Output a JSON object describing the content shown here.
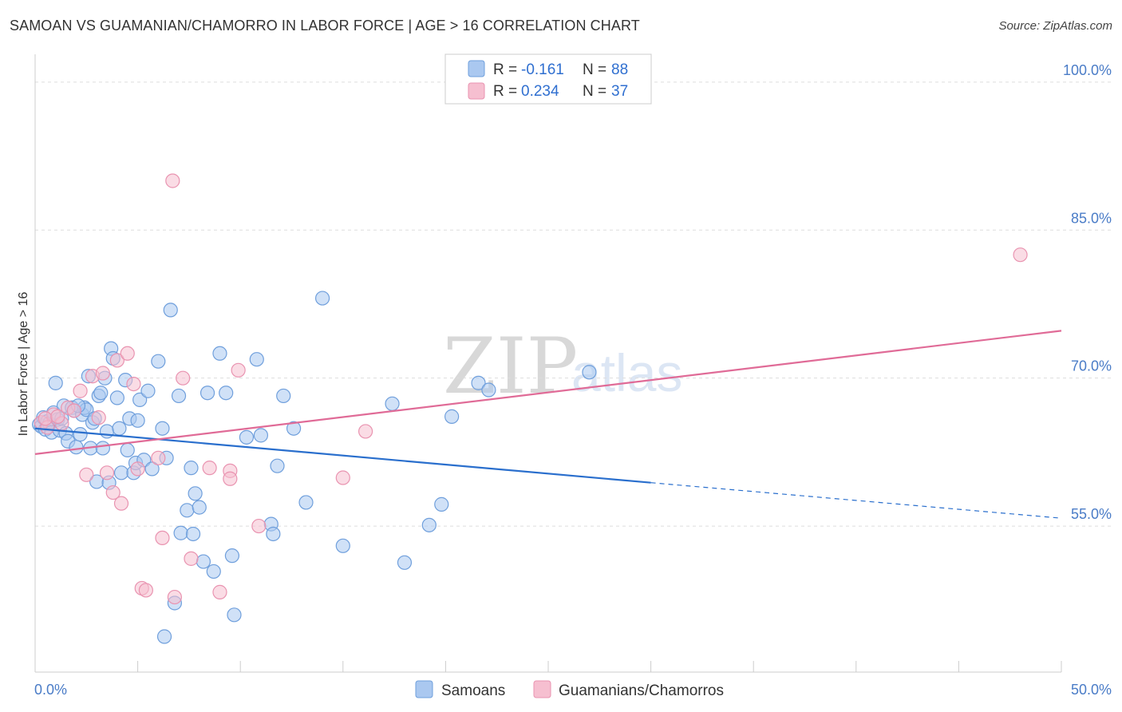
{
  "title": "SAMOAN VS GUAMANIAN/CHAMORRO IN LABOR FORCE | AGE > 16 CORRELATION CHART",
  "source": "Source: ZipAtlas.com",
  "watermark": {
    "zip": "ZIP",
    "atlas": "atlas"
  },
  "legend": {
    "rows": [
      {
        "r_label": "R =",
        "r_value": "-0.161",
        "n_label": "N =",
        "n_value": "88"
      },
      {
        "r_label": "R =",
        "r_value": "0.234",
        "n_label": "N =",
        "n_value": "37"
      }
    ]
  },
  "bottom_legend": {
    "samoans": "Samoans",
    "guamanians": "Guamanians/Chamorros"
  },
  "colors": {
    "blue_fill": "#aac8f0",
    "blue_stroke": "#6f9fdc",
    "blue_line": "#2a6fcd",
    "pink_fill": "#f6bfd0",
    "pink_stroke": "#e993b0",
    "pink_line": "#e06b97",
    "grid": "#dddddd",
    "tick_text": "#4a7cc7"
  },
  "chart_data": {
    "type": "scatter",
    "title": "SAMOAN VS GUAMANIAN/CHAMORRO IN LABOR FORCE | AGE > 16 CORRELATION CHART",
    "xlabel": "",
    "ylabel": "In Labor Force | Age > 16",
    "xlim": [
      0,
      50
    ],
    "ylim": [
      40.2,
      102.5
    ],
    "x_tick_labels": [
      "0.0%",
      "50.0%"
    ],
    "y_ticks": [
      55,
      70,
      85,
      100
    ],
    "y_tick_labels": [
      "55.0%",
      "70.0%",
      "85.0%",
      "100.0%"
    ],
    "series": [
      {
        "name": "Samoans",
        "r": -0.161,
        "n": 88,
        "trend": {
          "x0": 0,
          "y0": 64.9,
          "x1": 30,
          "y1": 59.4,
          "dash_x1": 50,
          "dash_y1": 55.8
        },
        "points": [
          [
            0.2,
            65.3
          ],
          [
            0.3,
            65.1
          ],
          [
            0.4,
            66.0
          ],
          [
            0.5,
            64.8
          ],
          [
            0.6,
            65.6
          ],
          [
            0.7,
            65.4
          ],
          [
            0.8,
            64.5
          ],
          [
            0.9,
            66.5
          ],
          [
            1.0,
            69.5
          ],
          [
            1.1,
            65.8
          ],
          [
            1.2,
            64.7
          ],
          [
            1.3,
            65.9
          ],
          [
            1.4,
            67.2
          ],
          [
            1.5,
            64.4
          ],
          [
            1.6,
            63.6
          ],
          [
            1.8,
            67.0
          ],
          [
            1.9,
            66.7
          ],
          [
            2.0,
            63.0
          ],
          [
            2.2,
            64.3
          ],
          [
            2.3,
            66.3
          ],
          [
            2.4,
            67.0
          ],
          [
            2.5,
            66.8
          ],
          [
            2.6,
            70.2
          ],
          [
            2.7,
            62.9
          ],
          [
            2.8,
            65.5
          ],
          [
            2.9,
            65.9
          ],
          [
            3.0,
            59.5
          ],
          [
            3.1,
            68.2
          ],
          [
            3.2,
            68.5
          ],
          [
            3.3,
            62.9
          ],
          [
            3.5,
            64.6
          ],
          [
            3.6,
            59.4
          ],
          [
            3.7,
            73.0
          ],
          [
            3.8,
            72.0
          ],
          [
            4.0,
            68.0
          ],
          [
            4.1,
            64.9
          ],
          [
            4.2,
            60.4
          ],
          [
            4.4,
            69.8
          ],
          [
            4.5,
            62.7
          ],
          [
            4.6,
            65.9
          ],
          [
            4.8,
            60.4
          ],
          [
            4.9,
            61.4
          ],
          [
            5.0,
            65.7
          ],
          [
            5.1,
            67.8
          ],
          [
            5.3,
            61.7
          ],
          [
            5.5,
            68.7
          ],
          [
            5.7,
            60.8
          ],
          [
            6.0,
            71.7
          ],
          [
            6.2,
            64.9
          ],
          [
            6.4,
            61.9
          ],
          [
            6.6,
            76.9
          ],
          [
            6.8,
            47.2
          ],
          [
            7.0,
            68.2
          ],
          [
            7.1,
            54.3
          ],
          [
            7.4,
            56.6
          ],
          [
            7.6,
            60.9
          ],
          [
            7.7,
            54.2
          ],
          [
            7.8,
            58.3
          ],
          [
            8.0,
            56.9
          ],
          [
            8.2,
            51.4
          ],
          [
            8.4,
            68.5
          ],
          [
            8.7,
            50.4
          ],
          [
            9.0,
            72.5
          ],
          [
            9.3,
            68.5
          ],
          [
            9.6,
            52.0
          ],
          [
            9.7,
            46.0
          ],
          [
            10.3,
            64.0
          ],
          [
            10.8,
            71.9
          ],
          [
            11.0,
            64.2
          ],
          [
            11.5,
            55.2
          ],
          [
            11.6,
            54.2
          ],
          [
            11.8,
            61.1
          ],
          [
            12.1,
            68.2
          ],
          [
            12.6,
            64.9
          ],
          [
            13.2,
            57.4
          ],
          [
            14.0,
            78.1
          ],
          [
            15.0,
            53.0
          ],
          [
            17.4,
            67.4
          ],
          [
            18.0,
            51.3
          ],
          [
            19.2,
            55.1
          ],
          [
            19.8,
            57.2
          ],
          [
            20.3,
            66.1
          ],
          [
            21.6,
            69.5
          ],
          [
            22.1,
            68.8
          ],
          [
            27.0,
            70.6
          ],
          [
            6.3,
            43.8
          ],
          [
            3.4,
            70.0
          ],
          [
            2.1,
            67.2
          ]
        ]
      },
      {
        "name": "Guamanians/Chamorros",
        "r": 0.234,
        "n": 37,
        "trend": {
          "x0": 0,
          "y0": 62.3,
          "x1": 50,
          "y1": 74.8
        },
        "points": [
          [
            0.3,
            65.5
          ],
          [
            0.6,
            65.0
          ],
          [
            0.9,
            66.3
          ],
          [
            1.3,
            65.4
          ],
          [
            1.6,
            67.0
          ],
          [
            1.9,
            66.7
          ],
          [
            2.2,
            68.7
          ],
          [
            2.5,
            60.2
          ],
          [
            2.8,
            70.2
          ],
          [
            3.1,
            66.0
          ],
          [
            3.3,
            70.5
          ],
          [
            3.5,
            60.4
          ],
          [
            3.8,
            58.4
          ],
          [
            4.0,
            71.8
          ],
          [
            4.2,
            57.3
          ],
          [
            4.5,
            72.5
          ],
          [
            4.8,
            69.4
          ],
          [
            5.0,
            60.8
          ],
          [
            5.2,
            48.7
          ],
          [
            5.4,
            48.5
          ],
          [
            6.0,
            61.9
          ],
          [
            6.2,
            53.8
          ],
          [
            6.7,
            90.0
          ],
          [
            6.8,
            47.8
          ],
          [
            7.2,
            70.0
          ],
          [
            7.6,
            51.7
          ],
          [
            8.5,
            60.9
          ],
          [
            9.0,
            48.3
          ],
          [
            9.5,
            60.6
          ],
          [
            9.5,
            59.8
          ],
          [
            9.9,
            70.8
          ],
          [
            10.9,
            55.0
          ],
          [
            15.0,
            59.9
          ],
          [
            16.1,
            64.6
          ],
          [
            48.0,
            82.5
          ],
          [
            0.5,
            65.9
          ],
          [
            1.1,
            66.1
          ]
        ]
      }
    ]
  }
}
